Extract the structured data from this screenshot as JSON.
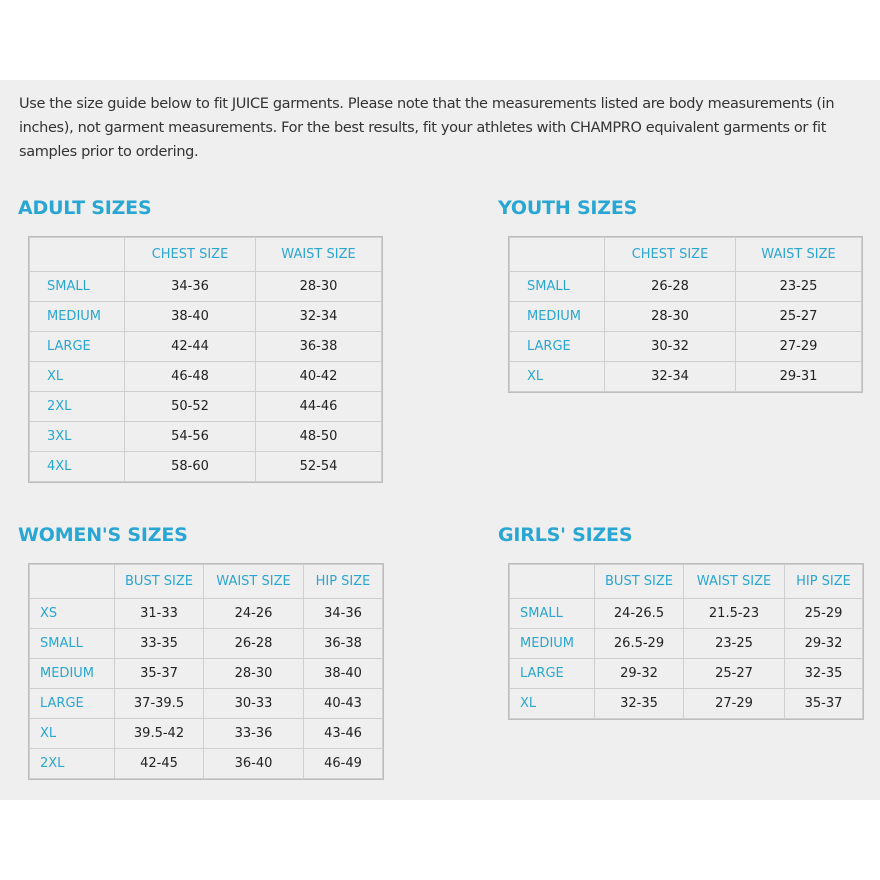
{
  "intro": "Use the size guide below to fit JUICE garments. Please note that the measurements listed are body measurements (in inches), not garment measurements. For the best results, fit your athletes with CHAMPRO equivalent garments or fit samples prior to ordering.",
  "accent_color": "#2aa6d5",
  "tables": [
    {
      "title": "ADULT SIZES",
      "headers": [
        "",
        "CHEST SIZE",
        "WAIST SIZE"
      ],
      "rows": [
        [
          "SMALL",
          "34-36",
          "28-30"
        ],
        [
          "MEDIUM",
          "38-40",
          "32-34"
        ],
        [
          "LARGE",
          "42-44",
          "36-38"
        ],
        [
          "XL",
          "46-48",
          "40-42"
        ],
        [
          "2XL",
          "50-52",
          "44-46"
        ],
        [
          "3XL",
          "54-56",
          "48-50"
        ],
        [
          "4XL",
          "58-60",
          "52-54"
        ]
      ]
    },
    {
      "title": "YOUTH SIZES",
      "headers": [
        "",
        "CHEST SIZE",
        "WAIST SIZE"
      ],
      "rows": [
        [
          "SMALL",
          "26-28",
          "23-25"
        ],
        [
          "MEDIUM",
          "28-30",
          "25-27"
        ],
        [
          "LARGE",
          "30-32",
          "27-29"
        ],
        [
          "XL",
          "32-34",
          "29-31"
        ]
      ]
    },
    {
      "title": "WOMEN'S SIZES",
      "headers": [
        "",
        "BUST SIZE",
        "WAIST SIZE",
        "HIP SIZE"
      ],
      "rows": [
        [
          "XS",
          "31-33",
          "24-26",
          "34-36"
        ],
        [
          "SMALL",
          "33-35",
          "26-28",
          "36-38"
        ],
        [
          "MEDIUM",
          "35-37",
          "28-30",
          "38-40"
        ],
        [
          "LARGE",
          "37-39.5",
          "30-33",
          "40-43"
        ],
        [
          "XL",
          "39.5-42",
          "33-36",
          "43-46"
        ],
        [
          "2XL",
          "42-45",
          "36-40",
          "46-49"
        ]
      ]
    },
    {
      "title": "GIRLS' SIZES",
      "headers": [
        "",
        "BUST SIZE",
        "WAIST SIZE",
        "HIP SIZE"
      ],
      "rows": [
        [
          "SMALL",
          "24-26.5",
          "21.5-23",
          "25-29"
        ],
        [
          "MEDIUM",
          "26.5-29",
          "23-25",
          "29-32"
        ],
        [
          "LARGE",
          "29-32",
          "25-27",
          "32-35"
        ],
        [
          "XL",
          "32-35",
          "27-29",
          "35-37"
        ]
      ]
    }
  ]
}
